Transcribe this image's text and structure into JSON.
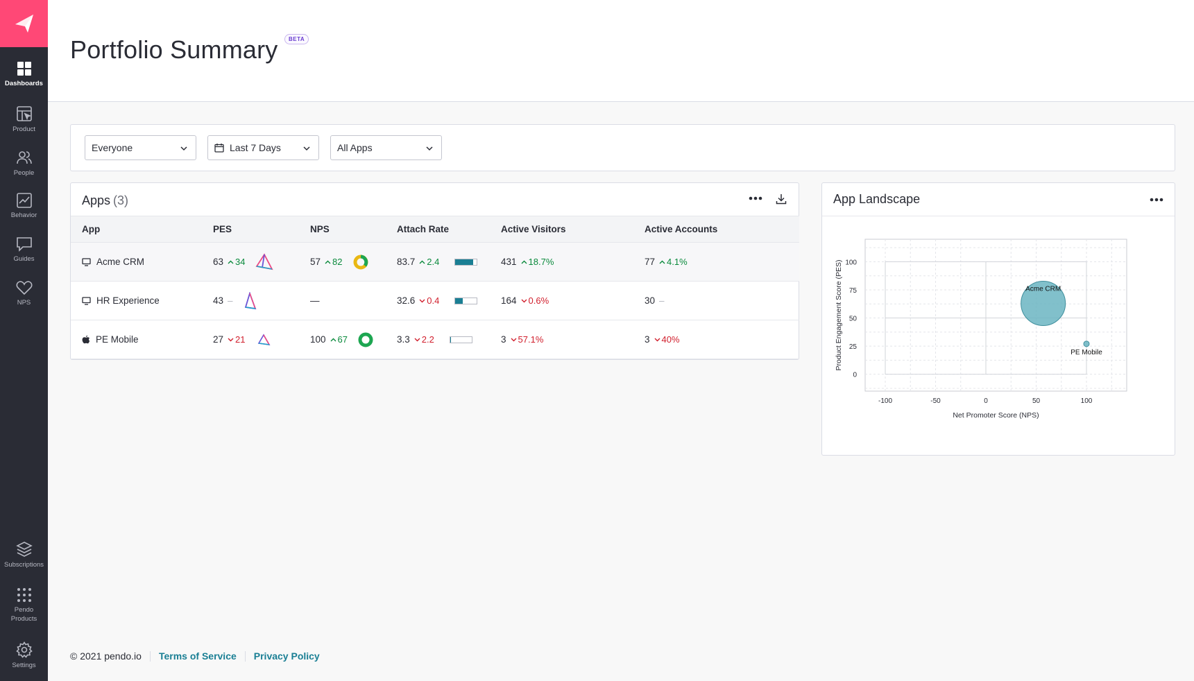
{
  "sidebar": {
    "items": [
      {
        "label": "Dashboards",
        "icon": "grid-icon",
        "active": true
      },
      {
        "label": "Product",
        "icon": "product-icon"
      },
      {
        "label": "People",
        "icon": "people-icon"
      },
      {
        "label": "Behavior",
        "icon": "chart-icon"
      },
      {
        "label": "Guides",
        "icon": "guide-icon"
      },
      {
        "label": "NPS",
        "icon": "heart-icon"
      }
    ],
    "bottom": [
      {
        "label": "Subscriptions",
        "icon": "layers-icon"
      },
      {
        "label": "Pendo Products",
        "icon": "dots-grid-icon"
      },
      {
        "label": "Settings",
        "icon": "gear-icon"
      }
    ]
  },
  "header": {
    "title": "Portfolio Summary",
    "badge": "BETA"
  },
  "filters": {
    "segment": "Everyone",
    "date_range": "Last 7 Days",
    "apps": "All Apps"
  },
  "apps_card": {
    "title": "Apps",
    "count": "(3)",
    "columns": [
      "App",
      "PES",
      "NPS",
      "Attach Rate",
      "Active Visitors",
      "Active Accounts"
    ],
    "rows": [
      {
        "platform": "desktop",
        "app": "Acme CRM",
        "pes": "63",
        "pes_change": "34",
        "pes_dir": "up",
        "nps": "57",
        "nps_change": "82",
        "nps_dir": "up",
        "attach": "83.7",
        "attach_change": "2.4",
        "attach_dir": "up",
        "attach_fill": 0.84,
        "visitors": "431",
        "visitors_change": "18.7%",
        "visitors_dir": "up",
        "accounts": "77",
        "accounts_change": "4.1%",
        "accounts_dir": "up"
      },
      {
        "platform": "desktop",
        "app": "HR Experience",
        "pes": "43",
        "pes_change": "",
        "pes_dir": "flat",
        "nps": "—",
        "nps_change": "",
        "nps_dir": "none",
        "attach": "32.6",
        "attach_change": "0.4",
        "attach_dir": "down",
        "attach_fill": 0.33,
        "visitors": "164",
        "visitors_change": "0.6%",
        "visitors_dir": "down",
        "accounts": "30",
        "accounts_change": "",
        "accounts_dir": "flat"
      },
      {
        "platform": "apple",
        "app": "PE Mobile",
        "pes": "27",
        "pes_change": "21",
        "pes_dir": "down",
        "nps": "100",
        "nps_change": "67",
        "nps_dir": "up",
        "attach": "3.3",
        "attach_change": "2.2",
        "attach_dir": "down",
        "attach_fill": 0.03,
        "visitors": "3",
        "visitors_change": "57.1%",
        "visitors_dir": "down",
        "accounts": "3",
        "accounts_change": "40%",
        "accounts_dir": "down"
      }
    ]
  },
  "landscape_card": {
    "title": "App Landscape"
  },
  "chart_data": {
    "type": "scatter",
    "title": "App Landscape",
    "xlabel": "Net Promoter Score (NPS)",
    "ylabel": "Product Engagement Score (PES)",
    "xlim": [
      -120,
      140
    ],
    "ylim": [
      -15,
      120
    ],
    "xticks": [
      -100,
      -50,
      0,
      50,
      100
    ],
    "yticks": [
      0,
      25,
      50,
      75,
      100
    ],
    "grid": true,
    "points": [
      {
        "label": "Acme CRM",
        "x": 57,
        "y": 63,
        "size": 431
      },
      {
        "label": "PE Mobile",
        "x": 100,
        "y": 27,
        "size": 3
      }
    ],
    "color": "#6bb5c2"
  },
  "footer": {
    "copyright": "© 2021 pendo.io",
    "terms": "Terms of Service",
    "privacy": "Privacy Policy"
  }
}
